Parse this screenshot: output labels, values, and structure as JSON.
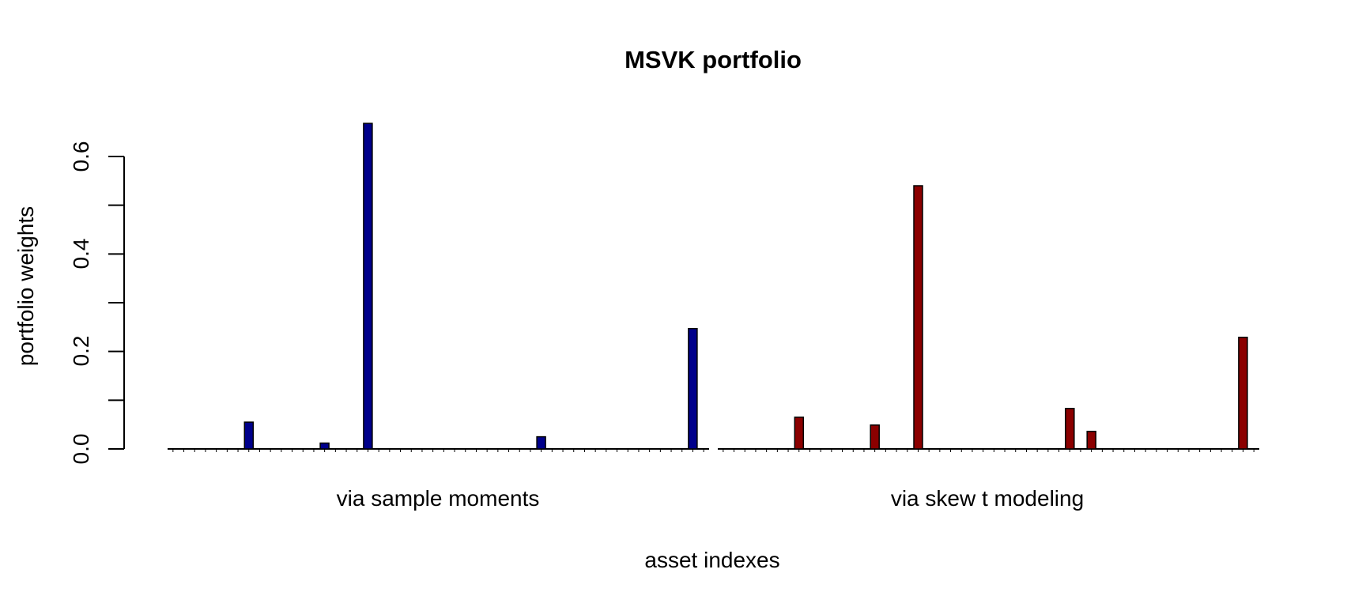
{
  "title": "MSVK portfolio",
  "y_axis": {
    "label": "portfolio weights",
    "tick_labels": [
      "0.0",
      "0.2",
      "0.4",
      "0.6"
    ]
  },
  "x_axis": {
    "label": "asset indexes"
  },
  "group_labels": {
    "left": "via sample moments",
    "right": "via skew t modeling"
  },
  "colors": {
    "left_bars": "#00008B",
    "right_bars": "#8B0000",
    "bar_border": "#000000",
    "axis": "#000000",
    "background": "#ffffff"
  },
  "chart_data": {
    "type": "bar",
    "title": "MSVK portfolio",
    "xlabel": "asset indexes",
    "ylabel": "portfolio weights",
    "ylim": [
      0,
      0.7
    ],
    "yticks": [
      0.0,
      0.1,
      0.2,
      0.3,
      0.4,
      0.5,
      0.6
    ],
    "ytick_labels": [
      "0.0",
      "",
      "0.2",
      "",
      "0.4",
      "",
      "0.6"
    ],
    "grid": false,
    "legend": "none",
    "n_assets_per_group": 50,
    "groups": [
      {
        "label": "via sample moments",
        "color": "#00008B",
        "bars": [
          {
            "asset_index": 8,
            "weight": 0.055
          },
          {
            "asset_index": 15,
            "weight": 0.012
          },
          {
            "asset_index": 19,
            "weight": 0.668
          },
          {
            "asset_index": 35,
            "weight": 0.025
          },
          {
            "asset_index": 49,
            "weight": 0.247
          }
        ]
      },
      {
        "label": "via skew t modeling",
        "color": "#8B0000",
        "bars": [
          {
            "asset_index": 8,
            "weight": 0.065
          },
          {
            "asset_index": 15,
            "weight": 0.049
          },
          {
            "asset_index": 19,
            "weight": 0.54
          },
          {
            "asset_index": 33,
            "weight": 0.083
          },
          {
            "asset_index": 35,
            "weight": 0.036
          },
          {
            "asset_index": 49,
            "weight": 0.229
          }
        ]
      }
    ]
  }
}
